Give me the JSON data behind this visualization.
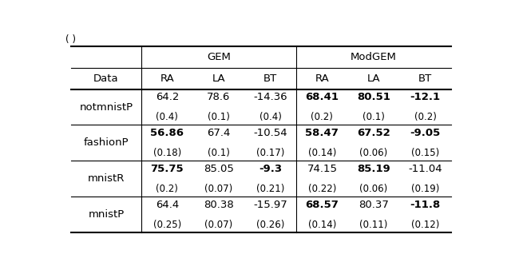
{
  "caption": "( )",
  "col_groups": [
    "GEM",
    "ModGEM"
  ],
  "col_headers": [
    "RA",
    "LA",
    "BT",
    "RA",
    "LA",
    "BT"
  ],
  "row_labels": [
    "notmnistP",
    "fashionP",
    "mnistR",
    "mnistP"
  ],
  "data": [
    [
      [
        "64.2",
        "(0.4)"
      ],
      [
        "78.6",
        "(0.1)"
      ],
      [
        "-14.36",
        "(0.4)"
      ],
      [
        "68.41",
        "(0.2)"
      ],
      [
        "80.51",
        "(0.1)"
      ],
      [
        "-12.1",
        "(0.2)"
      ]
    ],
    [
      [
        "56.86",
        "(0.18)"
      ],
      [
        "67.4",
        "(0.1)"
      ],
      [
        "-10.54",
        "(0.17)"
      ],
      [
        "58.47",
        "(0.14)"
      ],
      [
        "67.52",
        "(0.06)"
      ],
      [
        "-9.05",
        "(0.15)"
      ]
    ],
    [
      [
        "75.75",
        "(0.2)"
      ],
      [
        "85.05",
        "(0.07)"
      ],
      [
        "-9.3",
        "(0.21)"
      ],
      [
        "74.15",
        "(0.22)"
      ],
      [
        "85.19",
        "(0.06)"
      ],
      [
        "-11.04",
        "(0.19)"
      ]
    ],
    [
      [
        "64.4",
        "(0.25)"
      ],
      [
        "80.38",
        "(0.07)"
      ],
      [
        "-15.97",
        "(0.26)"
      ],
      [
        "68.57",
        "(0.14)"
      ],
      [
        "80.37",
        "(0.11)"
      ],
      [
        "-11.8",
        "(0.12)"
      ]
    ]
  ],
  "bold": [
    [
      [
        false,
        false
      ],
      [
        false,
        false
      ],
      [
        false,
        false
      ],
      [
        true,
        false
      ],
      [
        true,
        false
      ],
      [
        true,
        false
      ]
    ],
    [
      [
        true,
        false
      ],
      [
        false,
        false
      ],
      [
        false,
        false
      ],
      [
        true,
        false
      ],
      [
        true,
        false
      ],
      [
        true,
        false
      ]
    ],
    [
      [
        true,
        false
      ],
      [
        false,
        false
      ],
      [
        true,
        false
      ],
      [
        false,
        false
      ],
      [
        true,
        false
      ],
      [
        false,
        false
      ]
    ],
    [
      [
        false,
        false
      ],
      [
        false,
        false
      ],
      [
        false,
        false
      ],
      [
        true,
        false
      ],
      [
        false,
        false
      ],
      [
        true,
        false
      ]
    ]
  ],
  "fig_width": 6.4,
  "fig_height": 3.33,
  "dpi": 100
}
